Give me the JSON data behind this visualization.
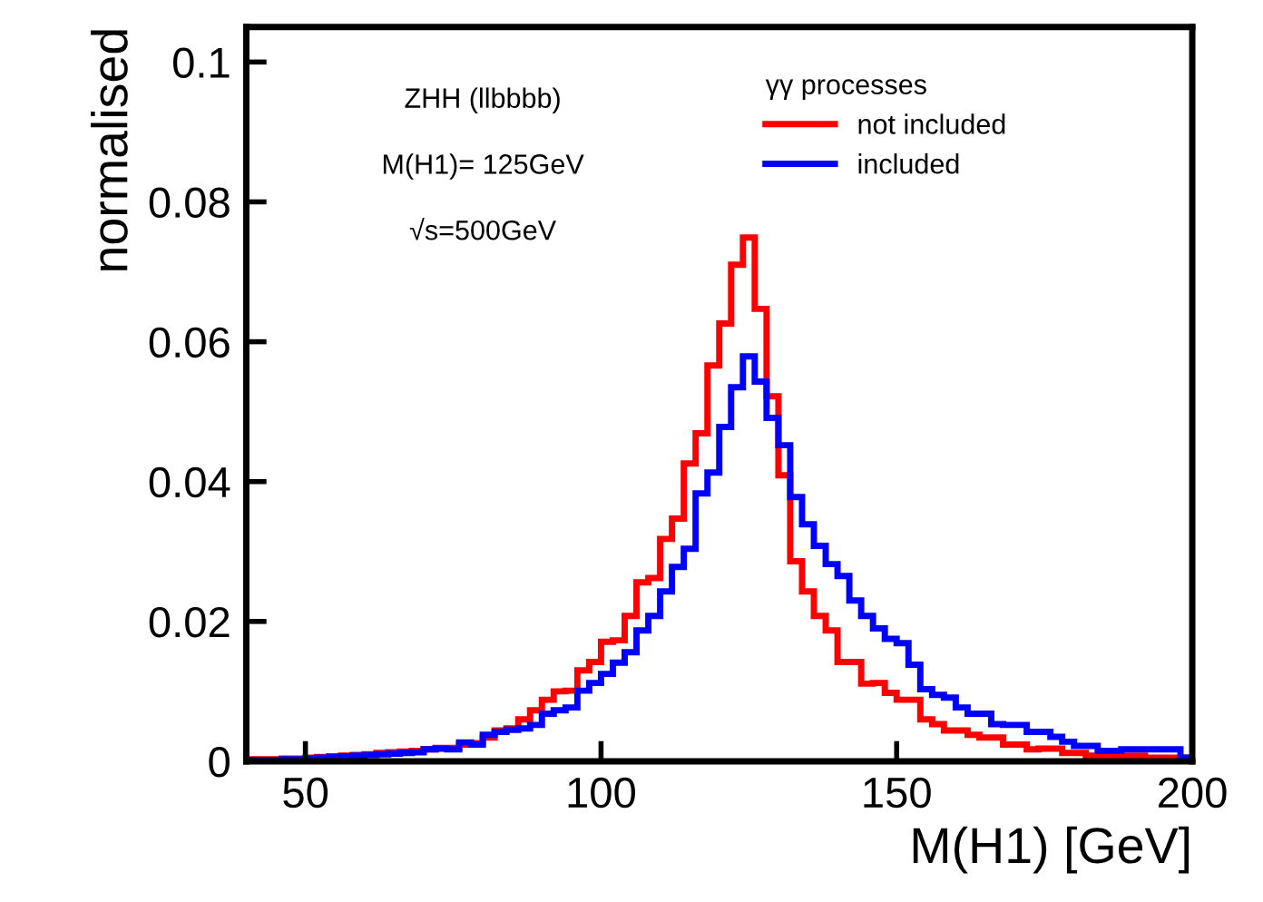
{
  "chart_data": {
    "type": "histogram",
    "xlabel": "M(H1) [GeV]",
    "ylabel": "normalised",
    "legend_title": "γγ processes",
    "annotations": [
      "ZHH (llbbbb)",
      "M(H1)= 125GeV",
      "√s=500GeV"
    ],
    "bins": [
      40,
      42,
      44,
      46,
      48,
      50,
      52,
      54,
      56,
      58,
      60,
      62,
      64,
      66,
      68,
      70,
      72,
      74,
      76,
      78,
      80,
      82,
      84,
      86,
      88,
      90,
      92,
      94,
      96,
      98,
      100,
      102,
      104,
      106,
      108,
      110,
      112,
      114,
      116,
      118,
      120,
      122,
      124,
      126,
      128,
      130,
      132,
      134,
      136,
      138,
      140,
      142,
      144,
      146,
      148,
      150,
      152,
      154,
      156,
      158,
      160,
      162,
      164,
      166,
      168,
      170,
      172,
      174,
      176,
      178,
      180,
      182,
      184,
      186,
      188,
      190,
      192,
      194,
      196,
      198,
      200
    ],
    "series": [
      {
        "name": "not included",
        "color": "#ff0000",
        "values": [
          0.0003,
          0.0003,
          0.0003,
          0.0004,
          0.0004,
          0.0005,
          0.0006,
          0.0007,
          0.0008,
          0.0009,
          0.001,
          0.0012,
          0.0013,
          0.0014,
          0.0015,
          0.0017,
          0.0019,
          0.0019,
          0.0024,
          0.0026,
          0.0034,
          0.0044,
          0.0047,
          0.006,
          0.0073,
          0.0088,
          0.01,
          0.0101,
          0.013,
          0.0142,
          0.0171,
          0.0173,
          0.0208,
          0.0256,
          0.0262,
          0.0318,
          0.0347,
          0.0426,
          0.0469,
          0.0566,
          0.0626,
          0.071,
          0.0749,
          0.0647,
          0.0522,
          0.0409,
          0.0286,
          0.0243,
          0.0208,
          0.0187,
          0.0142,
          0.0142,
          0.0111,
          0.0112,
          0.0098,
          0.0088,
          0.0088,
          0.006,
          0.0053,
          0.0044,
          0.0044,
          0.0038,
          0.0034,
          0.0034,
          0.0024,
          0.0024,
          0.0017,
          0.0018,
          0.0018,
          0.0012,
          0.0012,
          0.0008,
          0.0008,
          0.0008,
          0.0008,
          0.0008,
          0.0005,
          0.0005,
          0.0005,
          0.0005
        ]
      },
      {
        "name": "included",
        "color": "#0000ff",
        "values": [
          0.0002,
          0.0002,
          0.0002,
          0.0003,
          0.0003,
          0.0004,
          0.0005,
          0.0006,
          0.0007,
          0.0008,
          0.0009,
          0.001,
          0.0011,
          0.0012,
          0.0013,
          0.0017,
          0.0018,
          0.0017,
          0.0027,
          0.0024,
          0.0038,
          0.0042,
          0.0045,
          0.0047,
          0.0052,
          0.0068,
          0.0073,
          0.0077,
          0.0101,
          0.0112,
          0.0125,
          0.0141,
          0.0156,
          0.0187,
          0.0208,
          0.0243,
          0.0278,
          0.0304,
          0.0383,
          0.0413,
          0.0478,
          0.0535,
          0.0579,
          0.0543,
          0.0491,
          0.0452,
          0.0378,
          0.0339,
          0.0308,
          0.0282,
          0.0265,
          0.023,
          0.0208,
          0.019,
          0.0175,
          0.0169,
          0.0138,
          0.0103,
          0.0095,
          0.0091,
          0.0077,
          0.0068,
          0.0068,
          0.0053,
          0.0052,
          0.0052,
          0.0042,
          0.0042,
          0.0035,
          0.0028,
          0.0022,
          0.0022,
          0.0015,
          0.0015,
          0.0017,
          0.0017,
          0.0017,
          0.0017,
          0.0017,
          0.0005
        ]
      }
    ],
    "xlim": [
      40,
      200
    ],
    "xticks": [
      50,
      100,
      150,
      200
    ],
    "ylim": [
      0,
      0.105
    ],
    "yticks": [
      0,
      0.02,
      0.04,
      0.06,
      0.08,
      0.1
    ],
    "grid": false,
    "legend": "top right"
  }
}
